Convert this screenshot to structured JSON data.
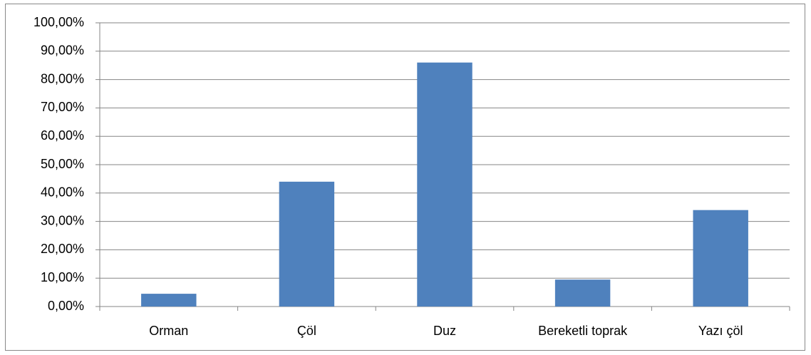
{
  "chart_data": {
    "type": "bar",
    "categories": [
      "Orman",
      "Çöl",
      "Duz",
      "Bereketli toprak",
      "Yazı çöl"
    ],
    "values": [
      4.5,
      44,
      86,
      9.5,
      34
    ],
    "color": "#4f81bd",
    "ylim": [
      0,
      100
    ],
    "yticks": [
      {
        "value": 0,
        "label": "0,00%"
      },
      {
        "value": 10,
        "label": "10,00%"
      },
      {
        "value": 20,
        "label": "20,00%"
      },
      {
        "value": 30,
        "label": "30,00%"
      },
      {
        "value": 40,
        "label": "40,00%"
      },
      {
        "value": 50,
        "label": "50,00%"
      },
      {
        "value": 60,
        "label": "60,00%"
      },
      {
        "value": 70,
        "label": "70,00%"
      },
      {
        "value": 80,
        "label": "80,00%"
      },
      {
        "value": 90,
        "label": "90,00%"
      },
      {
        "value": 100,
        "label": "100,00%"
      }
    ],
    "grid": true
  }
}
